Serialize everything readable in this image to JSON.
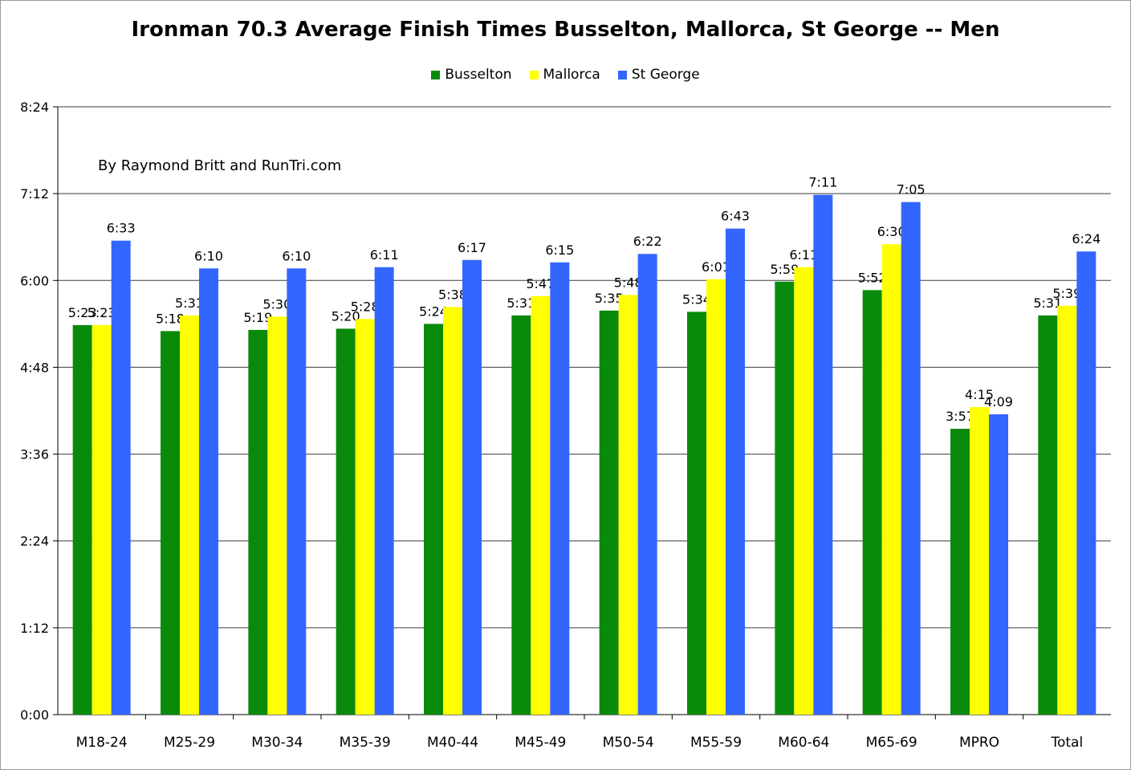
{
  "chart_data": {
    "type": "bar",
    "title": "Ironman 70.3 Average Finish Times Busselton, Mallorca, St George -- Men",
    "annotation": "By Raymond Britt and RunTri.com",
    "xlabel": "",
    "ylabel": "",
    "ylim_minutes": [
      0,
      504
    ],
    "y_ticks": [
      {
        "label": "0:00",
        "minutes": 0
      },
      {
        "label": "1:12",
        "minutes": 72
      },
      {
        "label": "2:24",
        "minutes": 144
      },
      {
        "label": "3:36",
        "minutes": 216
      },
      {
        "label": "4:48",
        "minutes": 288
      },
      {
        "label": "6:00",
        "minutes": 360
      },
      {
        "label": "7:12",
        "minutes": 432
      },
      {
        "label": "8:24",
        "minutes": 504
      }
    ],
    "grid": true,
    "legend_position": "top",
    "categories": [
      "M18-24",
      "M25-29",
      "M30-34",
      "M35-39",
      "M40-44",
      "M45-49",
      "M50-54",
      "M55-59",
      "M60-64",
      "M65-69",
      "MPRO",
      "Total"
    ],
    "series": [
      {
        "name": "Busselton",
        "color": "#0a8a0a",
        "labels": [
          "5:23",
          "5:18",
          "5:19",
          "5:20",
          "5:24",
          "5:31",
          "5:35",
          "5:34",
          "5:59",
          "5:52",
          "3:57",
          "5:31"
        ],
        "values_minutes": [
          323,
          318,
          319,
          320,
          324,
          331,
          335,
          334,
          359,
          352,
          237,
          331
        ]
      },
      {
        "name": "Mallorca",
        "color": "#ffff00",
        "labels": [
          "5:23",
          "5:31",
          "5:30",
          "5:28",
          "5:38",
          "5:47",
          "5:48",
          "6:01",
          "6:11",
          "6:30",
          "4:15",
          "5:39"
        ],
        "values_minutes": [
          323,
          331,
          330,
          328,
          338,
          347,
          348,
          361,
          371,
          390,
          255,
          339
        ]
      },
      {
        "name": "St George",
        "color": "#3366ff",
        "labels": [
          "6:33",
          "6:10",
          "6:10",
          "6:11",
          "6:17",
          "6:15",
          "6:22",
          "6:43",
          "7:11",
          "7:05",
          "4:09",
          "6:24"
        ],
        "values_minutes": [
          393,
          370,
          370,
          371,
          377,
          375,
          382,
          403,
          431,
          425,
          249,
          384
        ]
      }
    ]
  }
}
